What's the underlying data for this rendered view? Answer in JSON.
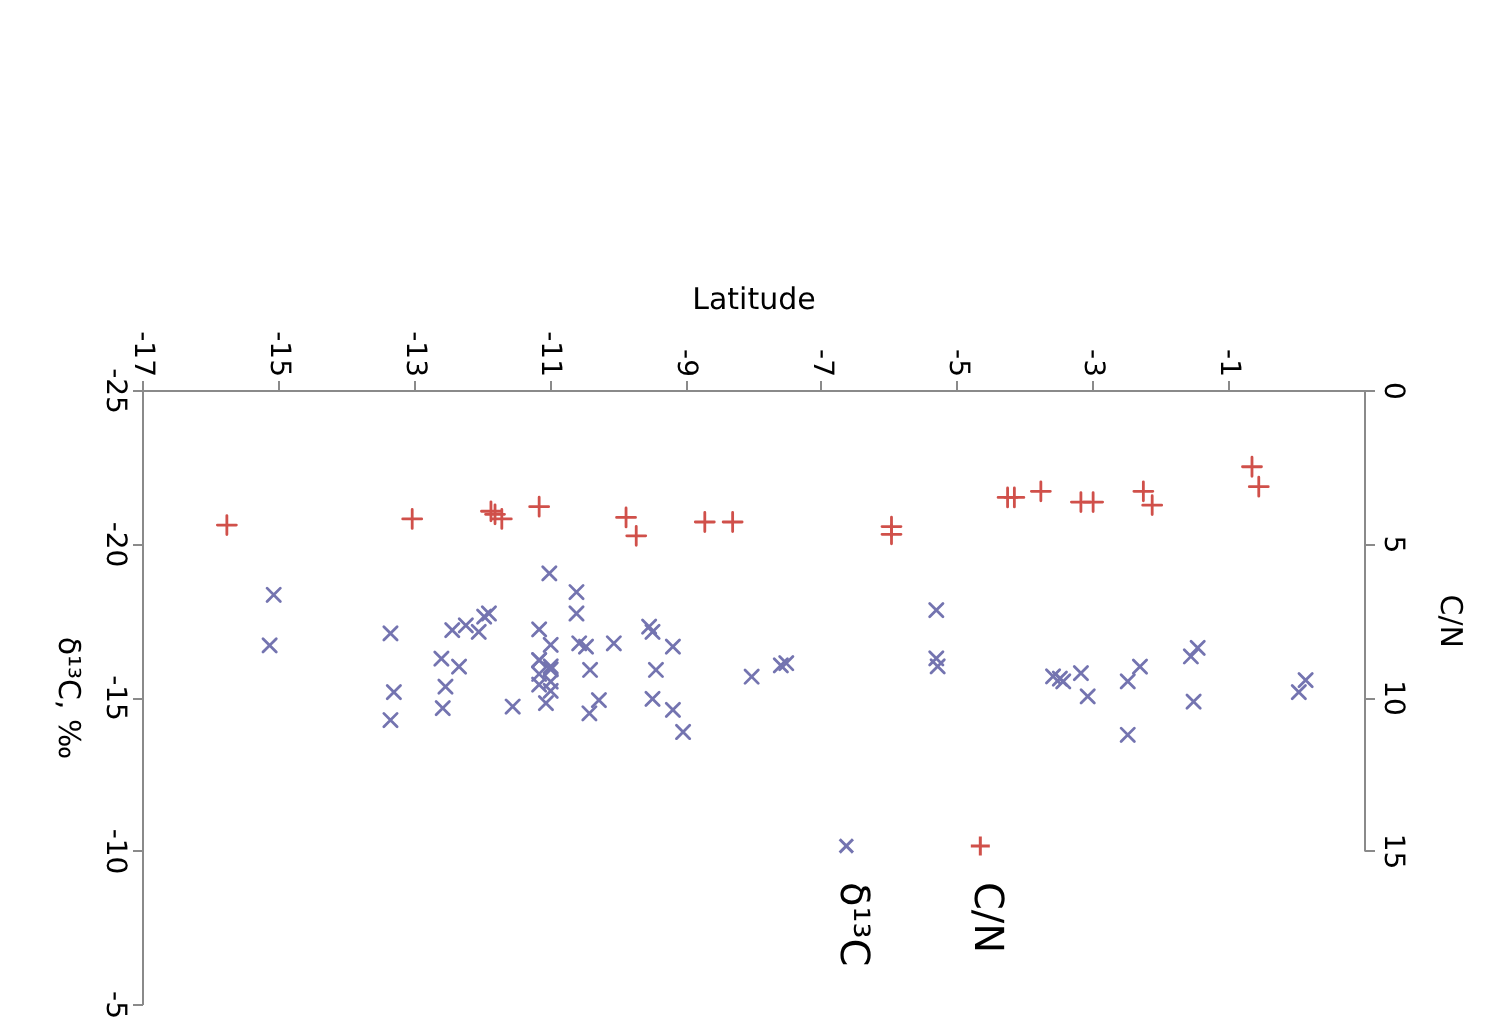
{
  "chart_data": {
    "type": "scatter",
    "xlabel": "Latitude",
    "ylabel": "δ¹³C, ‰",
    "y2label": "C/N",
    "xlim": [
      -17,
      1
    ],
    "xticks": [
      -17,
      -15,
      -13,
      -11,
      -9,
      -7,
      -5,
      -3,
      -1
    ],
    "ylim": [
      -5,
      -25
    ],
    "yticks": [
      -25,
      -20,
      -15,
      -10,
      -5
    ],
    "y2lim": [
      15,
      0
    ],
    "y2ticks": [
      0,
      5,
      10,
      15
    ],
    "grid": false,
    "legend": "bottom",
    "series": [
      {
        "name": "δ¹³C",
        "color": "#7474b0",
        "marker": "x",
        "values": [
          -18.33,
          -16.68,
          -17.07,
          -15.16,
          -14.25,
          -16.25,
          -15.34,
          -14.64,
          -15.99,
          -17.18,
          -17.33,
          -17.12,
          -17.62,
          -17.72,
          -14.69,
          -19.03,
          -17.2,
          -16.7,
          -16.2,
          -16.0,
          -16.2,
          -15.9,
          -15.75,
          -15.5,
          -15.4,
          -15.2,
          -14.8,
          -18.42,
          -17.72,
          -16.75,
          -16.64,
          -15.88,
          -14.9,
          -14.47,
          -16.75,
          -17.29,
          -17.12,
          -15.88,
          -14.94,
          -16.64,
          -14.58,
          -13.86,
          -15.66,
          -16.03,
          -16.1,
          -17.83,
          -16.26,
          -16.0,
          -15.67,
          -15.6,
          -15.51,
          -15.78,
          -15.02,
          -15.51,
          -15.99,
          -13.77,
          -16.32,
          -16.6,
          -14.85,
          -15.16,
          -15.55
        ],
        "x": [
          -15.06,
          -15.12,
          -13.34,
          -13.29,
          -13.34,
          -12.59,
          -12.53,
          -12.57,
          -12.33,
          -12.43,
          -12.23,
          -12.04,
          -11.96,
          -11.89,
          -11.54,
          -11.0,
          -11.15,
          -10.98,
          -11.15,
          -10.98,
          -11.15,
          -10.98,
          -11.15,
          -10.98,
          -11.15,
          -10.98,
          -11.05,
          -10.6,
          -10.6,
          -10.56,
          -10.46,
          -10.4,
          -10.27,
          -10.41,
          -10.05,
          -9.53,
          -9.48,
          -9.43,
          -9.48,
          -9.18,
          -9.18,
          -9.03,
          -8.02,
          -7.59,
          -7.51,
          -5.3,
          -5.3,
          -5.28,
          -3.58,
          -3.48,
          -3.43,
          -3.17,
          -3.07,
          -2.48,
          -2.3,
          -2.48,
          -1.55,
          -1.45,
          -1.51,
          0.04,
          0.14
        ]
      },
      {
        "name": "C/N",
        "color": "#d0504a",
        "marker": "cross",
        "axis": "y2",
        "values": [
          4.4,
          4.2,
          3.95,
          4.05,
          4.2,
          3.8,
          4.15,
          4.75,
          4.3,
          4.3,
          4.45,
          4.7,
          3.5,
          3.5,
          3.3,
          3.65,
          3.65,
          3.3,
          3.75,
          2.5,
          3.15
        ],
        "x": [
          -15.75,
          -13.02,
          -11.86,
          -11.8,
          -11.7,
          -11.15,
          -9.87,
          -9.72,
          -8.71,
          -8.3,
          -5.96,
          -5.96,
          -4.25,
          -4.15,
          -3.76,
          -3.17,
          -2.99,
          -2.25,
          -2.12,
          -0.65,
          -0.55
        ]
      }
    ]
  }
}
